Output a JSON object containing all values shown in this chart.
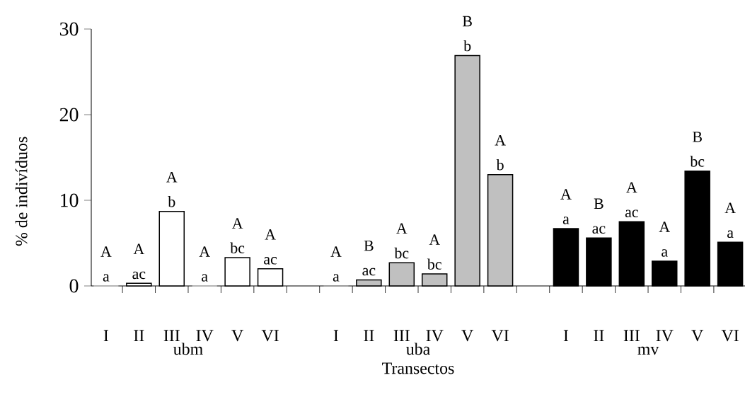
{
  "chart_data": {
    "type": "bar",
    "xlabel": "Transectos",
    "ylabel": "% de indivíduos",
    "categories": [
      "I",
      "II",
      "III",
      "IV",
      "V",
      "VI",
      null,
      "I",
      "II",
      "III",
      "IV",
      "V",
      "VI",
      null,
      "I",
      "II",
      "III",
      "IV",
      "V",
      "VI"
    ],
    "ylim": [
      0,
      30
    ],
    "yticks": [
      0,
      10,
      20,
      30
    ],
    "annotations": [
      "ubm",
      "uba",
      "mv"
    ],
    "series": [
      {
        "color": "#ffffff",
        "values": [
          0,
          0.3,
          8.7,
          0,
          3.3,
          2.0,
          null,
          null,
          null,
          null,
          null,
          null,
          null,
          null,
          null,
          null,
          null,
          null,
          null,
          null
        ],
        "value_labels": [
          "A a",
          "A ac",
          "A b",
          "A a",
          "A bc",
          "A ac",
          null,
          null,
          null,
          null,
          null,
          null,
          null,
          null,
          null,
          null,
          null,
          null,
          null,
          null
        ]
      },
      {
        "color": "#c0c0c0",
        "values": [
          null,
          null,
          null,
          null,
          null,
          null,
          null,
          0,
          0.7,
          2.7,
          1.4,
          26.9,
          13.0,
          null,
          null,
          null,
          null,
          null,
          null,
          null
        ],
        "value_labels": [
          null,
          null,
          null,
          null,
          null,
          null,
          null,
          "A a",
          "B ac",
          "A bc",
          "A bc",
          "B b",
          "A b",
          null,
          null,
          null,
          null,
          null,
          null,
          null
        ]
      },
      {
        "color": "#000000",
        "values": [
          null,
          null,
          null,
          null,
          null,
          null,
          null,
          null,
          null,
          null,
          null,
          null,
          null,
          null,
          6.7,
          5.6,
          7.5,
          2.9,
          13.4,
          5.1
        ],
        "value_labels": [
          null,
          null,
          null,
          null,
          null,
          null,
          null,
          null,
          null,
          null,
          null,
          null,
          null,
          null,
          "A a",
          "B ac",
          "A ac",
          "A a",
          "B bc",
          "A a"
        ]
      }
    ]
  }
}
